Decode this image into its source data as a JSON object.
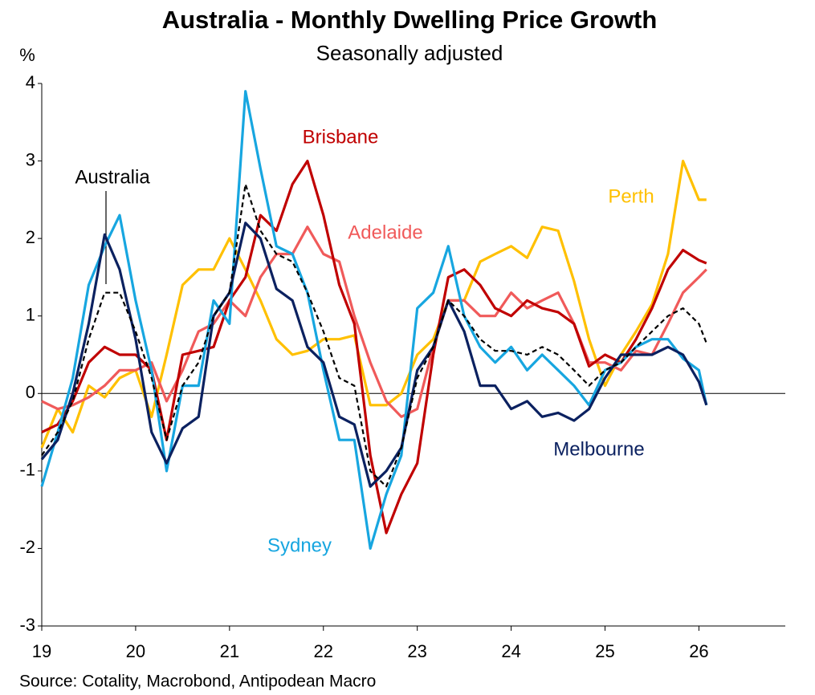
{
  "chart_data": {
    "type": "line",
    "title": "Australia - Monthly Dwelling Price Growth",
    "subtitle": "Seasonally adjusted",
    "y_label": "%",
    "source": "Source: Cotality, Macrobond, Antipodean Macro",
    "x": [
      2019,
      2019.17,
      2019.33,
      2019.5,
      2019.67,
      2019.83,
      2020,
      2020.17,
      2020.33,
      2020.5,
      2020.67,
      2020.83,
      2021,
      2021.17,
      2021.33,
      2021.5,
      2021.67,
      2021.83,
      2022,
      2022.17,
      2022.33,
      2022.5,
      2022.67,
      2022.83,
      2023,
      2023.17,
      2023.33,
      2023.5,
      2023.67,
      2023.83,
      2024,
      2024.17,
      2024.33,
      2024.5,
      2024.67,
      2024.83,
      2025,
      2025.17,
      2025.33,
      2025.5,
      2025.67,
      2025.83,
      2026,
      2026.08
    ],
    "series": [
      {
        "name": "Sydney",
        "color": "#17a6e0",
        "values": [
          -1.2,
          -0.5,
          0.2,
          1.4,
          1.9,
          2.3,
          1.2,
          0.3,
          -1.0,
          0.1,
          0.1,
          1.2,
          0.9,
          3.9,
          2.9,
          1.9,
          1.8,
          1.3,
          0.3,
          -0.6,
          -0.6,
          -2.0,
          -1.3,
          -0.8,
          1.1,
          1.3,
          1.9,
          1.0,
          0.6,
          0.4,
          0.6,
          0.3,
          0.5,
          0.3,
          0.1,
          -0.15,
          0.3,
          0.4,
          0.6,
          0.7,
          0.7,
          0.45,
          0.3,
          -0.15
        ]
      },
      {
        "name": "Melbourne",
        "color": "#0b2160",
        "values": [
          -0.85,
          -0.6,
          0.0,
          0.9,
          2.05,
          1.6,
          0.7,
          -0.5,
          -0.9,
          -0.45,
          -0.3,
          1.0,
          1.3,
          2.2,
          2.0,
          1.35,
          1.2,
          0.6,
          0.4,
          -0.3,
          -0.4,
          -1.2,
          -1.0,
          -0.7,
          0.3,
          0.6,
          1.2,
          0.8,
          0.1,
          0.1,
          -0.2,
          -0.1,
          -0.3,
          -0.25,
          -0.35,
          -0.2,
          0.2,
          0.5,
          0.5,
          0.5,
          0.6,
          0.5,
          0.15,
          -0.15
        ]
      },
      {
        "name": "Brisbane",
        "color": "#c00000",
        "values": [
          -0.5,
          -0.4,
          -0.1,
          0.4,
          0.6,
          0.5,
          0.5,
          0.3,
          -0.6,
          0.5,
          0.55,
          0.6,
          1.2,
          1.5,
          2.3,
          2.1,
          2.7,
          3.0,
          2.3,
          1.4,
          0.9,
          -0.8,
          -1.8,
          -1.3,
          -0.9,
          0.5,
          1.5,
          1.6,
          1.4,
          1.1,
          1.0,
          1.2,
          1.1,
          1.05,
          0.9,
          0.35,
          0.5,
          0.4,
          0.7,
          1.1,
          1.6,
          1.85,
          1.72,
          1.68
        ]
      },
      {
        "name": "Adelaide",
        "color": "#f05a5a",
        "values": [
          -0.1,
          -0.2,
          -0.15,
          -0.05,
          0.1,
          0.3,
          0.3,
          0.4,
          -0.1,
          0.3,
          0.8,
          0.9,
          1.2,
          1.0,
          1.5,
          1.8,
          1.8,
          2.15,
          1.8,
          1.7,
          1.0,
          0.4,
          -0.1,
          -0.3,
          -0.2,
          0.6,
          1.2,
          1.2,
          1.0,
          1.0,
          1.3,
          1.1,
          1.2,
          1.3,
          0.9,
          0.4,
          0.4,
          0.3,
          0.55,
          0.5,
          0.9,
          1.3,
          1.5,
          1.6
        ]
      },
      {
        "name": "Perth",
        "color": "#ffc000",
        "values": [
          -0.7,
          -0.2,
          -0.5,
          0.1,
          -0.05,
          0.2,
          0.3,
          -0.3,
          0.5,
          1.4,
          1.6,
          1.6,
          2.0,
          1.6,
          1.2,
          0.7,
          0.5,
          0.55,
          0.7,
          0.7,
          0.75,
          -0.15,
          -0.15,
          0.0,
          0.5,
          0.7,
          1.2,
          1.2,
          1.7,
          1.8,
          1.9,
          1.75,
          2.15,
          2.1,
          1.45,
          0.7,
          0.1,
          0.5,
          0.8,
          1.15,
          1.8,
          3.0,
          2.5,
          2.5
        ]
      },
      {
        "name": "Australia",
        "color": "#000000",
        "dashed": true,
        "values": [
          -0.8,
          -0.5,
          -0.1,
          0.7,
          1.3,
          1.3,
          0.8,
          0.2,
          -0.6,
          0.1,
          0.4,
          1.0,
          1.3,
          2.7,
          2.1,
          1.8,
          1.7,
          1.3,
          0.8,
          0.2,
          0.1,
          -1.0,
          -1.2,
          -0.7,
          0.2,
          0.6,
          1.2,
          1.0,
          0.7,
          0.55,
          0.55,
          0.5,
          0.6,
          0.5,
          0.3,
          0.1,
          0.3,
          0.4,
          0.6,
          0.8,
          1.0,
          1.1,
          0.9,
          0.65
        ]
      }
    ],
    "xlim": [
      2019,
      2026.92
    ],
    "xticks": [
      {
        "value": 2019,
        "label": "19"
      },
      {
        "value": 2020,
        "label": "20"
      },
      {
        "value": 2021,
        "label": "21"
      },
      {
        "value": 2022,
        "label": "22"
      },
      {
        "value": 2023,
        "label": "23"
      },
      {
        "value": 2024,
        "label": "24"
      },
      {
        "value": 2025,
        "label": "25"
      },
      {
        "value": 2026,
        "label": "26"
      }
    ],
    "ylim": [
      -3,
      4
    ],
    "yticks": [
      -3,
      -2,
      -1,
      0,
      1,
      2,
      3,
      4
    ],
    "grid": false
  }
}
